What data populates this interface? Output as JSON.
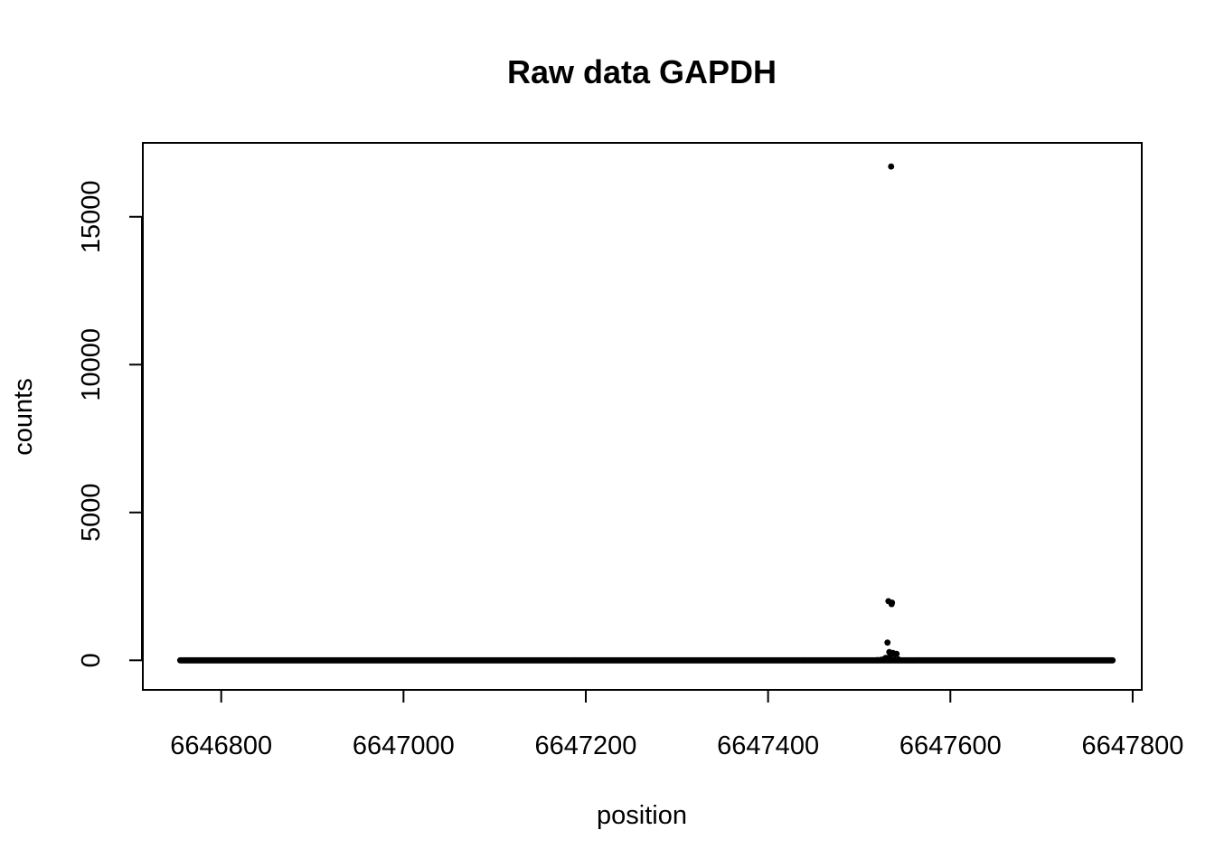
{
  "chart_data": {
    "type": "scatter",
    "title": "Raw data GAPDH",
    "xlabel": "position",
    "ylabel": "counts",
    "xlim": [
      6646714,
      6647810
    ],
    "ylim": [
      -1000,
      17500
    ],
    "x_ticks": [
      6646800,
      6647000,
      6647200,
      6647400,
      6647600,
      6647800
    ],
    "x_tick_labels": [
      "6646800",
      "6647000",
      "6647200",
      "6647400",
      "6647600",
      "6647800"
    ],
    "y_ticks": [
      0,
      5000,
      10000,
      15000
    ],
    "y_tick_labels": [
      "0",
      "5000",
      "10000",
      "15000"
    ],
    "grid": false,
    "point_color": "#000000",
    "baseline": {
      "x_start": 6646755,
      "x_end": 6647778,
      "value": 0
    },
    "points": [
      {
        "x": 6647520,
        "y": 10
      },
      {
        "x": 6647524,
        "y": 20
      },
      {
        "x": 6647527,
        "y": 40
      },
      {
        "x": 6647529,
        "y": 80
      },
      {
        "x": 6647531,
        "y": 600
      },
      {
        "x": 6647532,
        "y": 2000
      },
      {
        "x": 6647533,
        "y": 280
      },
      {
        "x": 6647534,
        "y": 150
      },
      {
        "x": 6647535,
        "y": 16700
      },
      {
        "x": 6647535.5,
        "y": 1900
      },
      {
        "x": 6647536,
        "y": 1950
      },
      {
        "x": 6647537,
        "y": 250
      },
      {
        "x": 6647539,
        "y": 200
      },
      {
        "x": 6647541,
        "y": 220
      },
      {
        "x": 6647543,
        "y": 30
      }
    ]
  }
}
